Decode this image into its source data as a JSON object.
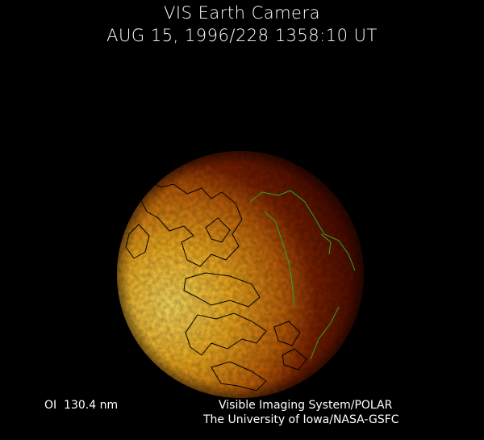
{
  "header": {
    "title": "VIS Earth Camera",
    "timestamp": "AUG 15, 1996/228 1358:10 UT"
  },
  "footer": {
    "band": "OI  130.4 nm",
    "instrument": "Visible Imaging System/POLAR",
    "organization": "The University of Iowa/NASA-GSFC"
  },
  "colors": {
    "background": "#000000",
    "bright_emission": "#ffd040",
    "dark_side": "#4a0a00",
    "coastline_day": "#000000",
    "coastline_night": "#22aa22"
  }
}
